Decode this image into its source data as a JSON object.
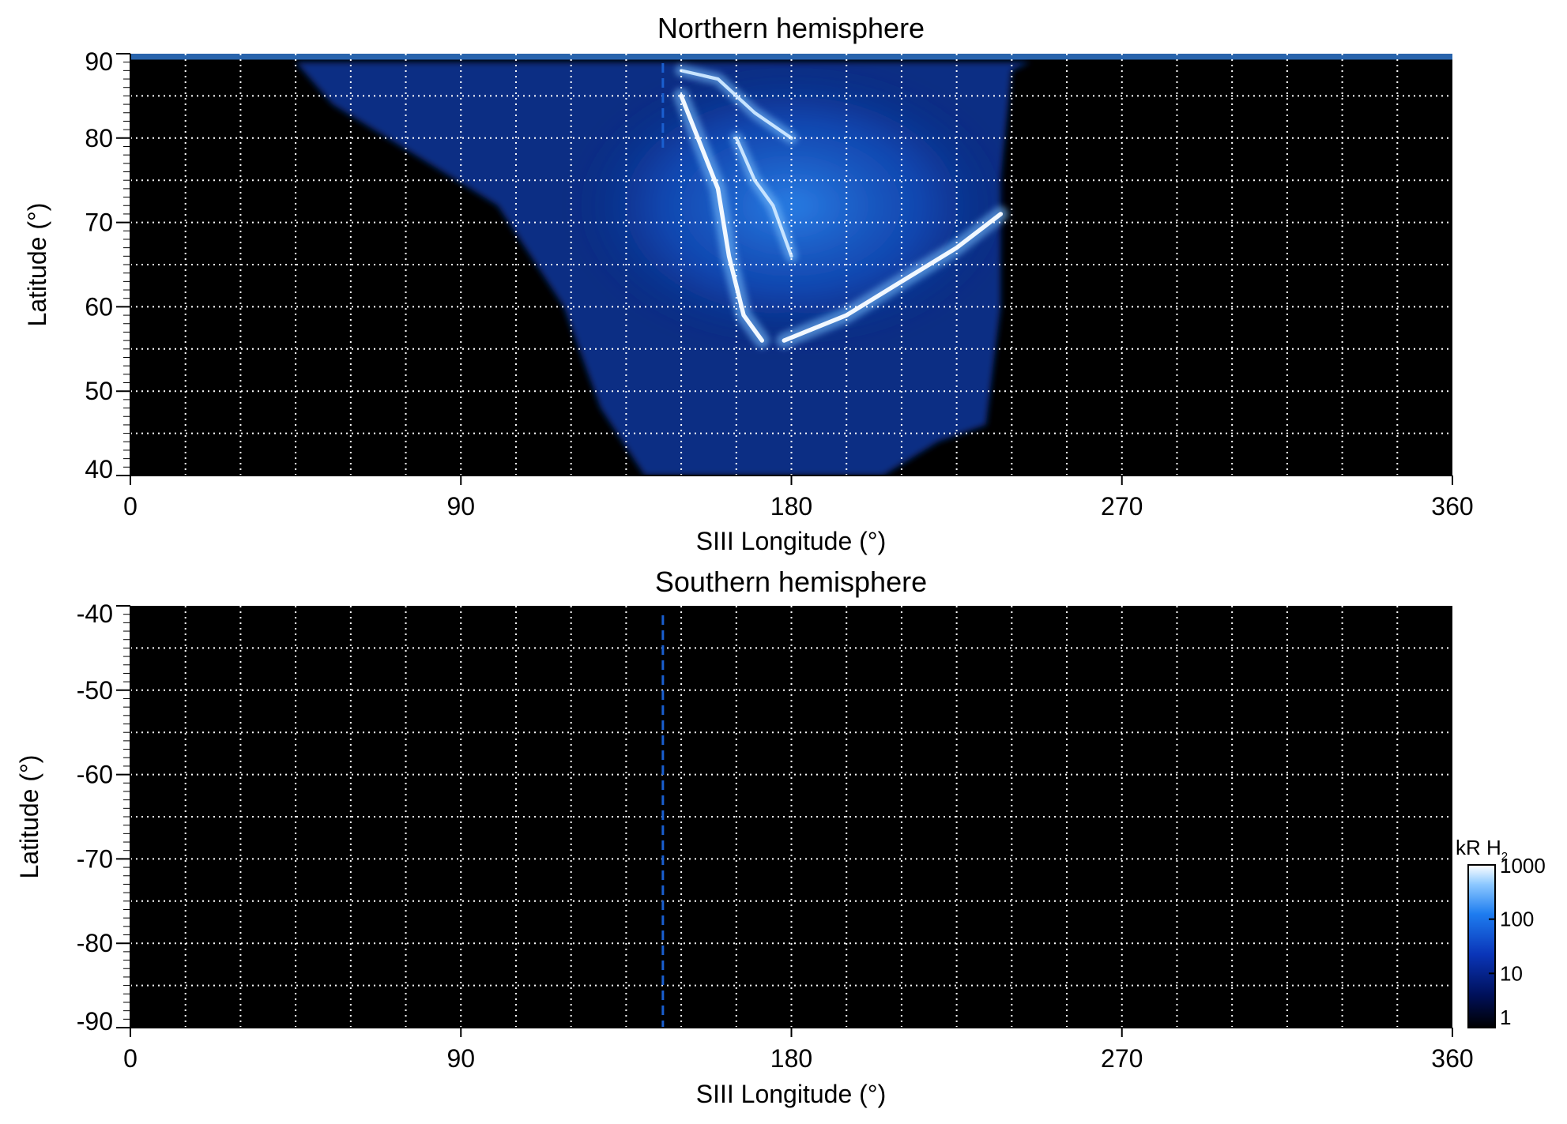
{
  "chart_data": [
    {
      "type": "heatmap",
      "title": "Northern hemisphere",
      "xlabel": "SIII Longitude (°)",
      "ylabel": "Latitude (°)",
      "xlim": [
        0,
        360
      ],
      "ylim": [
        40,
        90
      ],
      "x_ticks": [
        0,
        90,
        180,
        270,
        360
      ],
      "x_tick_labels": [
        "0",
        "90",
        "180",
        "270",
        "360"
      ],
      "y_ticks": [
        40,
        50,
        60,
        70,
        80,
        90
      ],
      "y_tick_labels": [
        "40",
        "50",
        "60",
        "70",
        "80",
        "90"
      ],
      "x_grid_step": 15,
      "y_grid_step": 5,
      "grid": true,
      "background_color": "#000000",
      "marker_longitude": 145,
      "marker_color": "#1a5fd0",
      "emission_region": {
        "longitude_range": [
          45,
          245
        ],
        "latitude_range": [
          40,
          89
        ],
        "southern_boundary": [
          [
            55,
            84
          ],
          [
            100,
            72
          ],
          [
            118,
            60
          ],
          [
            128,
            48
          ],
          [
            140,
            40
          ],
          [
            185,
            40
          ],
          [
            205,
            40
          ],
          [
            220,
            44
          ],
          [
            233,
            46
          ],
          [
            237,
            60
          ],
          [
            237,
            75
          ],
          [
            240,
            88
          ]
        ]
      },
      "arcs": [
        {
          "points": [
            [
              150,
              85
            ],
            [
              160,
              74
            ],
            [
              163,
              66
            ],
            [
              167,
              59
            ],
            [
              172,
              56
            ]
          ],
          "intensity": 1000
        },
        {
          "points": [
            [
              178,
              56
            ],
            [
              195,
              59
            ],
            [
              210,
              63
            ],
            [
              225,
              67
            ],
            [
              237,
              71
            ]
          ],
          "intensity": 1000
        },
        {
          "points": [
            [
              165,
              80
            ],
            [
              170,
              75
            ],
            [
              175,
              72
            ],
            [
              180,
              66
            ]
          ],
          "intensity": 700
        },
        {
          "points": [
            [
              150,
              88
            ],
            [
              160,
              87
            ],
            [
              170,
              83
            ],
            [
              180,
              80
            ]
          ],
          "intensity": 600
        }
      ]
    },
    {
      "type": "heatmap",
      "title": "Southern hemisphere",
      "xlabel": "SIII Longitude (°)",
      "ylabel": "Latitude (°)",
      "xlim": [
        0,
        360
      ],
      "ylim": [
        -90,
        -40
      ],
      "x_ticks": [
        0,
        90,
        180,
        270,
        360
      ],
      "x_tick_labels": [
        "0",
        "90",
        "180",
        "270",
        "360"
      ],
      "y_ticks": [
        -40,
        -50,
        -60,
        -70,
        -80,
        -90
      ],
      "y_tick_labels": [
        "-40",
        "-50",
        "-60",
        "-70",
        "-80",
        "-90"
      ],
      "x_grid_step": 15,
      "y_grid_step": 5,
      "grid": true,
      "background_color": "#000000",
      "marker_longitude": 145,
      "marker_color": "#1a5fd0",
      "emission_region": null
    }
  ],
  "colorbar": {
    "title": "kR H",
    "title_subscript": "2",
    "scale": "log",
    "range": [
      1,
      1000
    ],
    "ticks": [
      1,
      10,
      100,
      1000
    ],
    "tick_labels": [
      "1",
      "10",
      "100",
      "1000"
    ],
    "colors": [
      "#000000",
      "#00105a",
      "#0a35b8",
      "#1e7df0",
      "#8cc8ff",
      "#ffffff"
    ]
  }
}
